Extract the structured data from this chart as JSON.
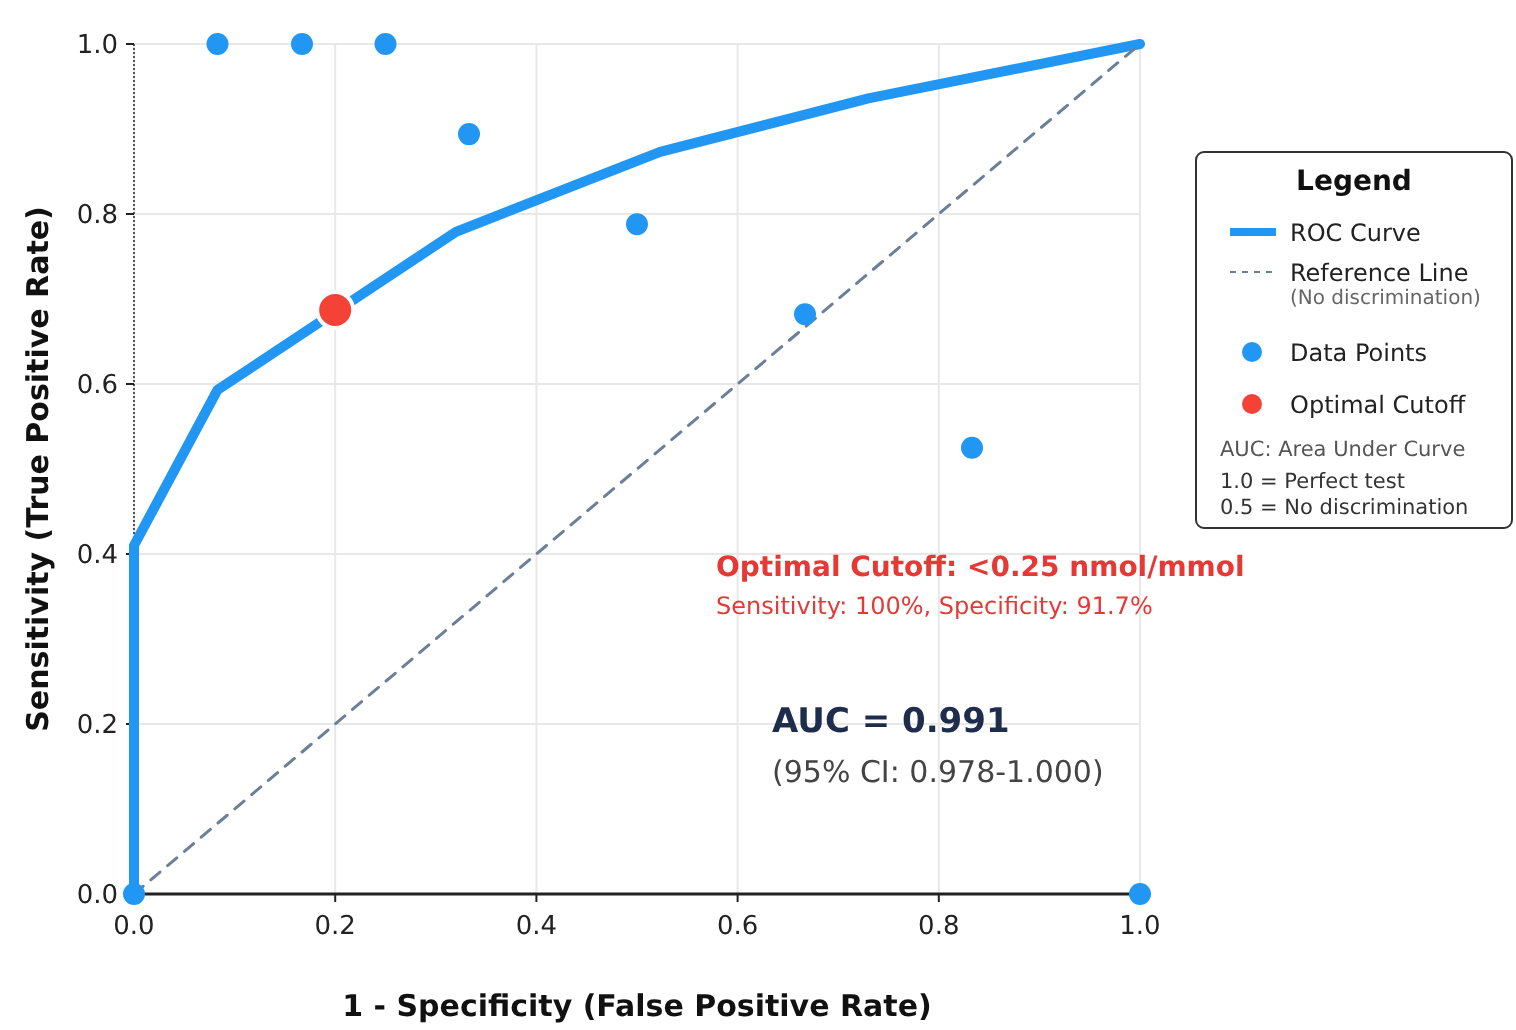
{
  "chart_data": {
    "type": "line",
    "xlabel": "1 - Specificity (False Positive Rate)",
    "ylabel": "Sensitivity (True Positive Rate)",
    "xlim": [
      0,
      1
    ],
    "ylim": [
      0,
      1
    ],
    "xticks": [
      {
        "value": 0,
        "label": "0.0"
      },
      {
        "value": 0.2,
        "label": "0.2"
      },
      {
        "value": 0.4,
        "label": "0.4"
      },
      {
        "value": 0.6,
        "label": "0.6"
      },
      {
        "value": 0.8,
        "label": "0.8"
      },
      {
        "value": 1,
        "label": "1.0"
      }
    ],
    "yticks": [
      {
        "value": 0,
        "label": "0.0"
      },
      {
        "value": 0.2,
        "label": "0.2"
      },
      {
        "value": 0.4,
        "label": "0.4"
      },
      {
        "value": 0.6,
        "label": "0.6"
      },
      {
        "value": 0.8,
        "label": "0.8"
      },
      {
        "value": 1,
        "label": "1.0"
      }
    ],
    "grid": true,
    "legend": "right",
    "legend_title": "Legend",
    "series": [
      {
        "name": "ROC Curve",
        "color": "#2196f3",
        "x": [
          0,
          0,
          0.083,
          0.32,
          0.523,
          0.73,
          1
        ],
        "values": [
          0,
          0.41,
          0.593,
          0.779,
          0.873,
          0.936,
          1
        ]
      },
      {
        "name": "Reference Line",
        "color": "#6b7f99",
        "line_style": "dashed",
        "x": [
          0,
          1
        ],
        "values": [
          0,
          1
        ]
      },
      {
        "name": "Data Points",
        "type": "scatter",
        "color": "#2196f3",
        "marker": "circle",
        "x": [
          0,
          0.083,
          0.167,
          0.25,
          0.333,
          0.5,
          0.667,
          0.833,
          1
        ],
        "values": [
          0,
          1,
          1,
          1,
          0.894,
          0.788,
          0.682,
          0.525,
          0
        ]
      },
      {
        "name": "Optimal Cutoff",
        "type": "scatter",
        "color": "#f44336",
        "marker": "circle",
        "x": [
          0.2
        ],
        "values": [
          0.687
        ]
      }
    ],
    "annotations": [
      "(No discrimination)",
      "AUC: Area Under Curve",
      "1.0 = Perfect test",
      "0.5 = No discrimination",
      "Optimal Cutoff: <0.25 nmol/mmol",
      "Sensitivity: 100%, Specificity: 91.7%",
      "AUC = 0.991",
      "(95% CI: 0.978-1.000)"
    ]
  }
}
